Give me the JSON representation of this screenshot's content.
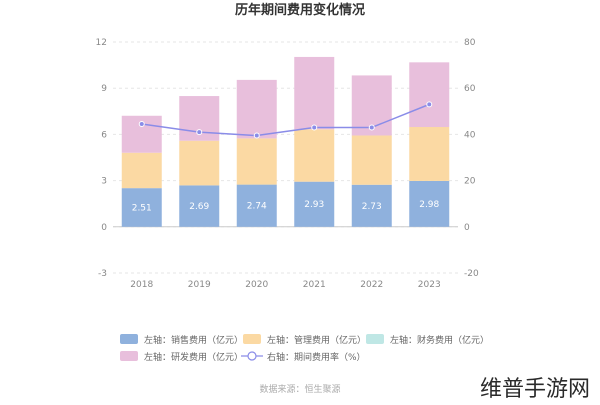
{
  "chart_data": {
    "type": "bar",
    "title": "历年期间费用变化情况",
    "categories": [
      "2018",
      "2019",
      "2020",
      "2021",
      "2022",
      "2023"
    ],
    "left_axis": {
      "ylim": [
        -3,
        12
      ],
      "ticks": [
        "-3",
        "0",
        "3",
        "6",
        "9",
        "12"
      ]
    },
    "right_axis": {
      "ylim": [
        -20,
        80
      ],
      "ticks": [
        "-20",
        "0",
        "20",
        "40",
        "60",
        "80"
      ]
    },
    "stacked": true,
    "series": [
      {
        "name": "左轴：销售费用（亿元）",
        "axis": "left",
        "kind": "bar",
        "color": "#8fb1dd",
        "values": [
          2.51,
          2.69,
          2.74,
          2.93,
          2.73,
          2.98
        ],
        "labels": [
          "2.51",
          "2.69",
          "2.74",
          "2.93",
          "2.73",
          "2.98"
        ]
      },
      {
        "name": "左轴：管理费用（亿元）",
        "axis": "left",
        "kind": "bar",
        "color": "#fbd9a3",
        "values": [
          2.3,
          2.9,
          3.0,
          3.4,
          3.2,
          3.5
        ]
      },
      {
        "name": "左轴：财务费用（亿元）",
        "axis": "left",
        "kind": "bar",
        "color": "#bfe7e5",
        "values": [
          0,
          0,
          0,
          0,
          0,
          0
        ]
      },
      {
        "name": "左轴：研发费用（亿元）",
        "axis": "left",
        "kind": "bar",
        "color": "#e8bfdc",
        "values": [
          2.4,
          2.9,
          3.8,
          4.7,
          3.9,
          4.2
        ]
      },
      {
        "name": "右轴：期间费用率（%）",
        "axis": "right",
        "kind": "line",
        "color": "#8a8ce8",
        "values": [
          44.5,
          41,
          39.5,
          43,
          43,
          53
        ]
      }
    ],
    "legend_position": "bottom",
    "grid": true
  },
  "source_text": "数据来源：恒生聚源",
  "watermark_text": "维普手游网"
}
